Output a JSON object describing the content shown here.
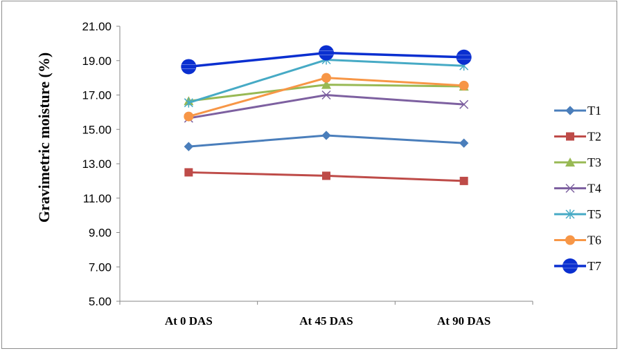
{
  "chart_data": {
    "type": "line",
    "title": "",
    "xlabel": "",
    "ylabel": "Gravimetric moisture (%)",
    "categories": [
      "At 0 DAS",
      "At 45 DAS",
      "At 90 DAS"
    ],
    "ylim": [
      5,
      21
    ],
    "yticks": [
      "5.00",
      "7.00",
      "9.00",
      "11.00",
      "13.00",
      "15.00",
      "17.00",
      "19.00",
      "21.00"
    ],
    "grid": false,
    "legend_position": "right",
    "series": [
      {
        "name": "T1",
        "values": [
          14.0,
          14.65,
          14.2
        ],
        "color": "#4a7ebb",
        "marker": "diamond"
      },
      {
        "name": "T2",
        "values": [
          12.5,
          12.3,
          12.0
        ],
        "color": "#be4b48",
        "marker": "square"
      },
      {
        "name": "T3",
        "values": [
          16.65,
          17.6,
          17.5
        ],
        "color": "#98b954",
        "marker": "triangle"
      },
      {
        "name": "T4",
        "values": [
          15.65,
          17.0,
          16.45
        ],
        "color": "#7d60a0",
        "marker": "x"
      },
      {
        "name": "T5",
        "values": [
          16.55,
          19.05,
          18.7
        ],
        "color": "#46aac5",
        "marker": "star"
      },
      {
        "name": "T6",
        "values": [
          15.75,
          18.0,
          17.55
        ],
        "color": "#f79646",
        "marker": "circle"
      },
      {
        "name": "T7",
        "values": [
          18.65,
          19.45,
          19.2
        ],
        "color": "#0a2fd0",
        "marker": "bigcircle"
      }
    ]
  }
}
